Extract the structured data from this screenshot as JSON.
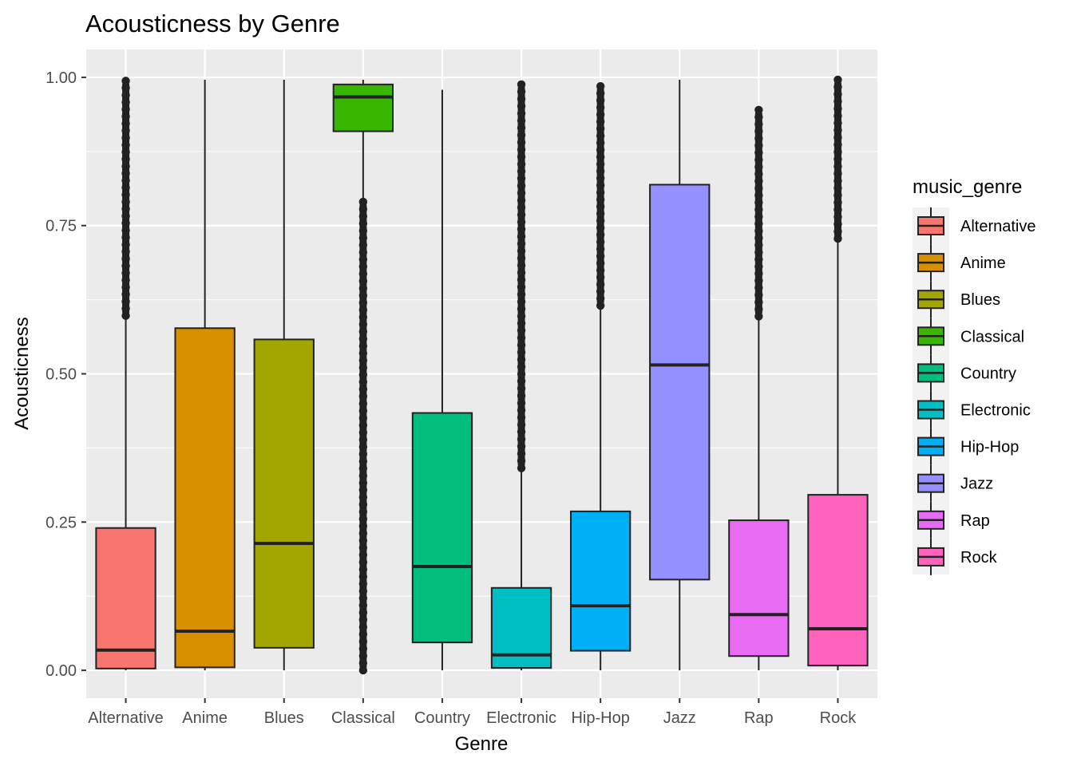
{
  "chart_data": {
    "type": "boxplot",
    "title": "Acousticness by Genre",
    "xlabel": "Genre",
    "ylabel": "Acousticness",
    "ylim": [
      -0.047,
      1.047
    ],
    "yticks": [
      0.0,
      0.25,
      0.5,
      0.75,
      1.0
    ],
    "ytick_labels": [
      "0.00",
      "0.25",
      "0.50",
      "0.75",
      "1.00"
    ],
    "grid": true,
    "legend": {
      "title": "music_genre",
      "position": "right"
    },
    "categories": [
      "Alternative",
      "Anime",
      "Blues",
      "Classical",
      "Country",
      "Electronic",
      "Hip-Hop",
      "Jazz",
      "Rap",
      "Rock"
    ],
    "colors": [
      "#F8766D",
      "#D89000",
      "#A3A500",
      "#39B600",
      "#00BF7D",
      "#00BFC4",
      "#00B0F6",
      "#9590FF",
      "#E76BF3",
      "#FF62BC"
    ],
    "boxes": [
      {
        "genre": "Alternative",
        "q1": 0.003,
        "median": 0.034,
        "q3": 0.24,
        "whisker_low": 0.0,
        "whisker_high": 0.597,
        "outliers_range": [
          0.598,
          0.994
        ]
      },
      {
        "genre": "Anime",
        "q1": 0.005,
        "median": 0.066,
        "q3": 0.577,
        "whisker_low": 0.0,
        "whisker_high": 0.996,
        "outliers_range": null
      },
      {
        "genre": "Blues",
        "q1": 0.038,
        "median": 0.214,
        "q3": 0.558,
        "whisker_low": 0.0,
        "whisker_high": 0.996,
        "outliers_range": null
      },
      {
        "genre": "Classical",
        "q1": 0.909,
        "median": 0.967,
        "q3": 0.988,
        "whisker_low": 0.791,
        "whisker_high": 0.996,
        "outliers_range": [
          0.0,
          0.79
        ]
      },
      {
        "genre": "Country",
        "q1": 0.047,
        "median": 0.175,
        "q3": 0.434,
        "whisker_low": 0.0,
        "whisker_high": 0.979,
        "outliers_range": null
      },
      {
        "genre": "Electronic",
        "q1": 0.004,
        "median": 0.026,
        "q3": 0.139,
        "whisker_low": 0.0,
        "whisker_high": 0.34,
        "outliers_range": [
          0.341,
          0.988
        ]
      },
      {
        "genre": "Hip-Hop",
        "q1": 0.033,
        "median": 0.109,
        "q3": 0.268,
        "whisker_low": 0.0,
        "whisker_high": 0.614,
        "outliers_range": [
          0.615,
          0.985
        ]
      },
      {
        "genre": "Jazz",
        "q1": 0.153,
        "median": 0.515,
        "q3": 0.819,
        "whisker_low": 0.0,
        "whisker_high": 0.996,
        "outliers_range": null
      },
      {
        "genre": "Rap",
        "q1": 0.024,
        "median": 0.094,
        "q3": 0.253,
        "whisker_low": 0.0,
        "whisker_high": 0.596,
        "outliers_range": [
          0.597,
          0.945
        ]
      },
      {
        "genre": "Rock",
        "q1": 0.008,
        "median": 0.07,
        "q3": 0.296,
        "whisker_low": 0.0,
        "whisker_high": 0.727,
        "outliers_range": [
          0.728,
          0.996
        ]
      }
    ]
  }
}
